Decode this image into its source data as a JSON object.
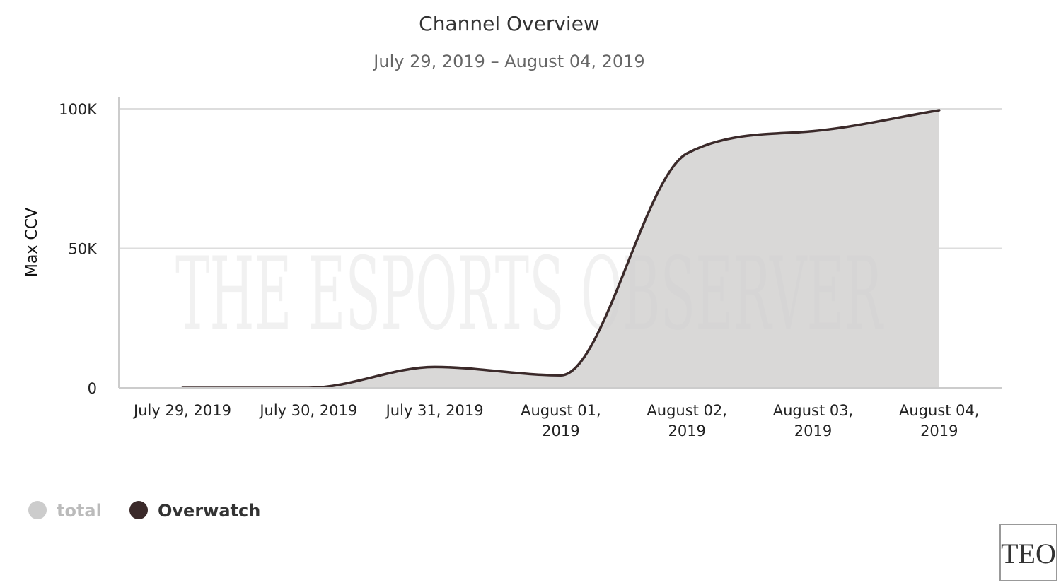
{
  "colors": {
    "area_fill": "#d9d8d7",
    "line": "#3b2a2a",
    "grid": "#dddddd",
    "axis": "#cccccc",
    "legend_total": "#cccccc",
    "legend_total_text": "#bbbbbb",
    "legend_overwatch": "#3b2a2a",
    "legend_overwatch_text": "#333333"
  },
  "watermark": "THE ESPORTS OBSERVER",
  "logo": "TEO",
  "chart_data": {
    "type": "area",
    "title": "Channel Overview",
    "subtitle": "July 29, 2019 – August 04, 2019",
    "xlabel": "",
    "ylabel": "Max CCV",
    "ylim": [
      0,
      100000
    ],
    "yticks": [
      {
        "value": 0,
        "label": "0"
      },
      {
        "value": 50000,
        "label": "50K"
      },
      {
        "value": 100000,
        "label": "100K"
      }
    ],
    "categories": [
      [
        "July 29, 2019"
      ],
      [
        "July 30, 2019"
      ],
      [
        "July 31, 2019"
      ],
      [
        "August 01,",
        "2019"
      ],
      [
        "August 02,",
        "2019"
      ],
      [
        "August 03,",
        "2019"
      ],
      [
        "August 04,",
        "2019"
      ]
    ],
    "series": [
      {
        "name": "total",
        "type": "area",
        "values": [
          0,
          0,
          7500,
          4500,
          84000,
          92000,
          99500
        ]
      },
      {
        "name": "Overwatch",
        "type": "line",
        "values": [
          0,
          0,
          7500,
          4500,
          84000,
          92000,
          99500
        ]
      }
    ],
    "legend": {
      "position": "bottom-left",
      "items": [
        {
          "label": "total",
          "color_key": "legend_total",
          "text_color_key": "legend_total_text"
        },
        {
          "label": "Overwatch",
          "color_key": "legend_overwatch",
          "text_color_key": "legend_overwatch_text"
        }
      ]
    },
    "grid": true
  }
}
